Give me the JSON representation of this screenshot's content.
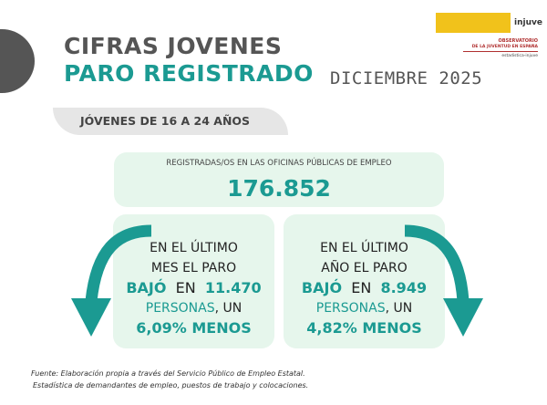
{
  "header": {
    "title_line1": "CIFRAS JOVENES",
    "title_line2": "PARO REGISTRADO",
    "date": "DICIEMBRE 2025",
    "age_group": "JÓVENES DE 16 A 24 AÑOS"
  },
  "logo": {
    "brand": "injuve",
    "observatorio": "OBSERVATORIO",
    "subtitle": "DE LA JUVENTUD EN ESPAÑA",
    "site": "estadistica-injuve"
  },
  "total": {
    "label": "REGISTRADAS/OS EN LAS OFICINAS PÚBLICAS DE EMPLEO",
    "value": "176.852"
  },
  "monthly": {
    "line1": "EN EL ÚLTIMO",
    "line2": "MES EL PARO",
    "verb": "BAJÓ",
    "en": "EN",
    "amount": "11.470",
    "persons": "PERSONAS",
    "un": ", UN",
    "percent": "6,09% MENOS"
  },
  "yearly": {
    "line1": "EN EL ÚLTIMO",
    "line2": "AÑO EL PARO",
    "verb": "BAJÓ",
    "en": "EN",
    "amount": "8.949",
    "persons": "PERSONAS",
    "un": ", UN",
    "percent": "4,82% MENOS"
  },
  "source": {
    "line1": "Fuente: Elaboración propia a través del Servicio Público de Empleo Estatal.",
    "line2": "Estadística de demandantes de empleo, puestos de trabajo y colocaciones."
  },
  "colors": {
    "teal": "#1b9a92",
    "card": "#e6f6ec",
    "gray": "#555555"
  }
}
